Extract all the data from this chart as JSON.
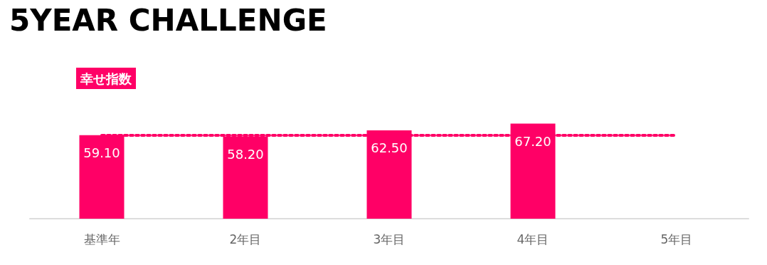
{
  "chart_data": {
    "type": "bar",
    "title": "5YEAR CHALLENGE",
    "categories": [
      "基準年",
      "2年目",
      "3年目",
      "4年目",
      "5年目"
    ],
    "series": [
      {
        "name": "幸せ指数",
        "color": "#ff0066",
        "values": [
          59.1,
          58.2,
          62.5,
          67.2,
          null
        ],
        "value_labels": [
          "59.10",
          "58.20",
          "62.50",
          "67.20",
          null
        ]
      }
    ],
    "legend": "top left",
    "ref_lines": [
      {
        "axis": "y",
        "value": 59.1,
        "color": "#ff0066",
        "line_style": "dotted"
      }
    ]
  }
}
